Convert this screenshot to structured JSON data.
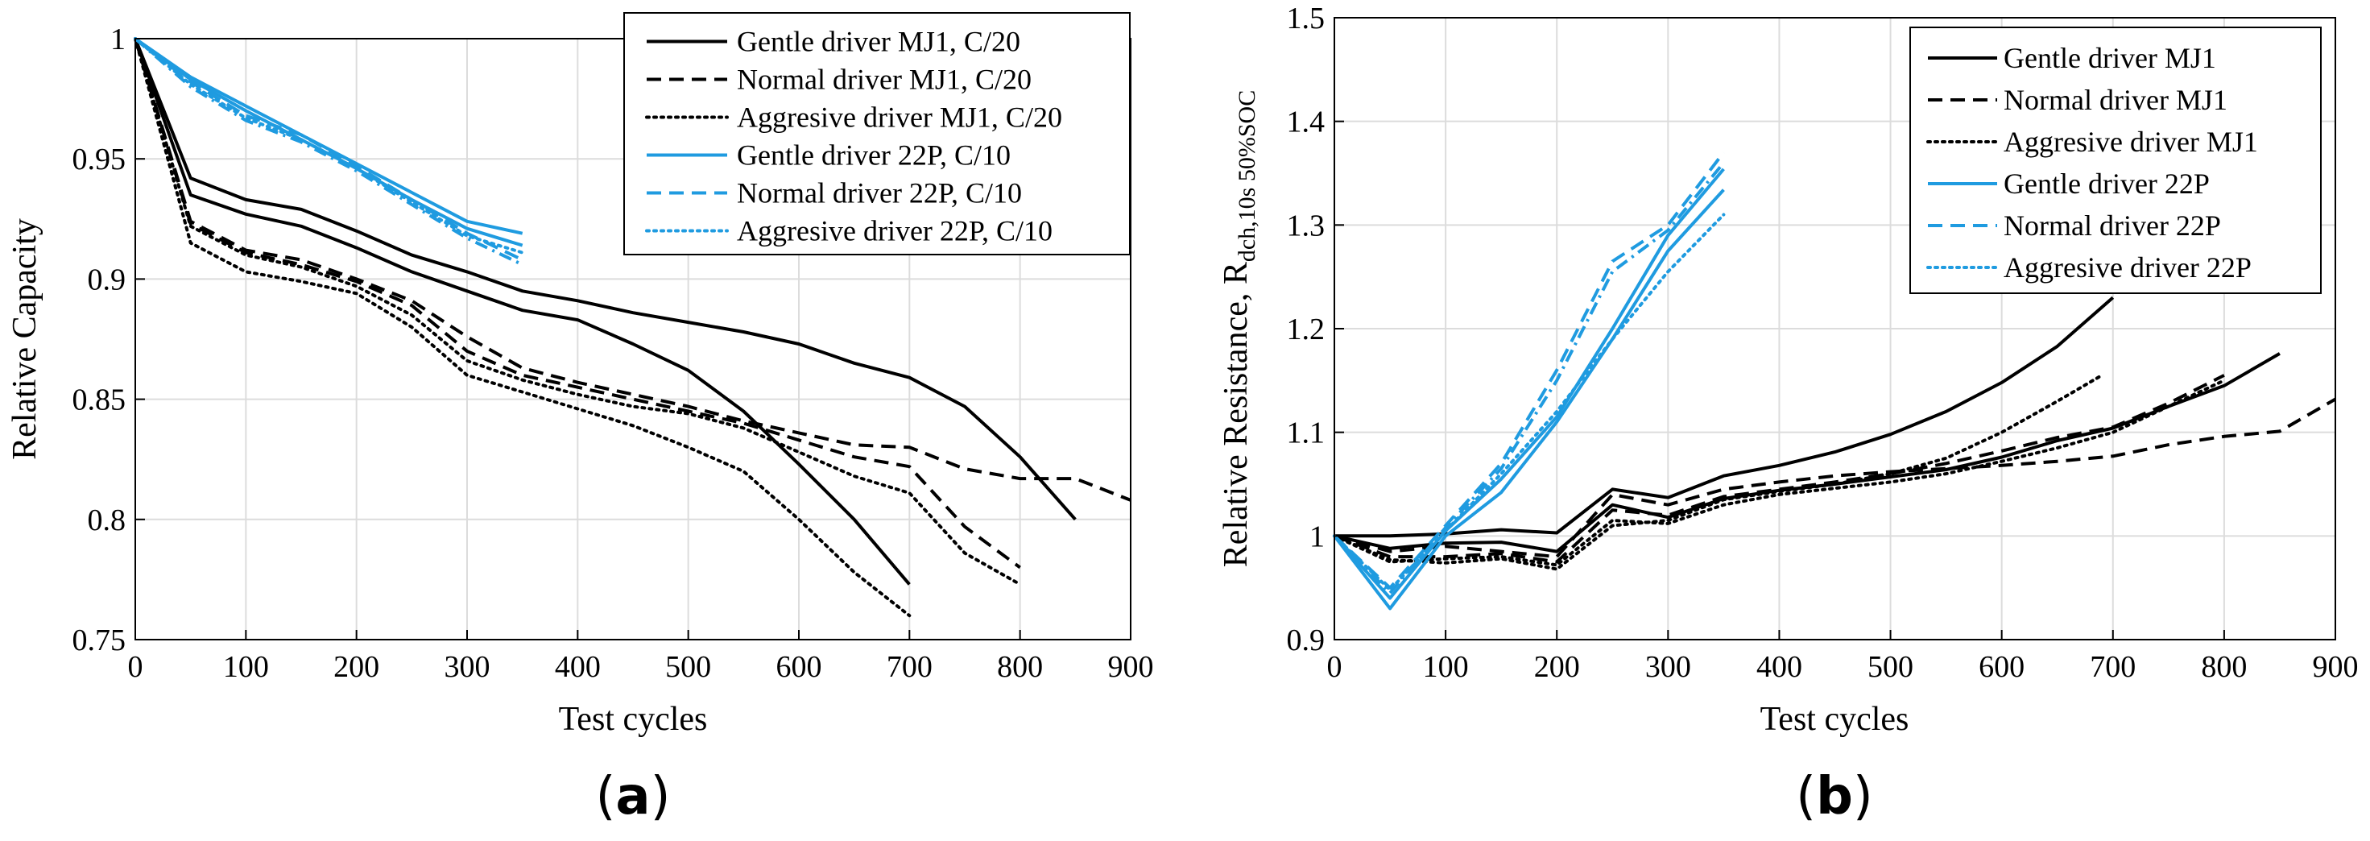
{
  "colors": {
    "mj1": "#000000",
    "p22": "#1f9be0",
    "grid": "#dcdcdc"
  },
  "chart_data": [
    {
      "type": "line",
      "panel_label_open": "(",
      "panel_label_letter": "a",
      "panel_label_close": ")",
      "xlabel": "Test cycles",
      "ylabel": "Relative Capacity",
      "xlim": [
        0,
        900
      ],
      "ylim": [
        0.75,
        1.0
      ],
      "xticks": [
        0,
        100,
        200,
        300,
        400,
        500,
        600,
        700,
        800,
        900
      ],
      "yticks": [
        0.75,
        0.8,
        0.85,
        0.9,
        0.95,
        1
      ],
      "ytick_labels": [
        "0.75",
        "0.8",
        "0.85",
        "0.9",
        "0.95",
        "1"
      ],
      "grid": true,
      "legend_position": "top-right",
      "series": [
        {
          "name": "Gentle driver MJ1, C/20",
          "color_key": "mj1",
          "style": "solid",
          "show_in_legend": true,
          "x": [
            0,
            50,
            100,
            150,
            200,
            250,
            300,
            350,
            400,
            450,
            500,
            550,
            600,
            650,
            700,
            750,
            800,
            850
          ],
          "y": [
            1.0,
            0.942,
            0.933,
            0.929,
            0.92,
            0.91,
            0.903,
            0.895,
            0.891,
            0.886,
            0.882,
            0.878,
            0.873,
            0.865,
            0.859,
            0.847,
            0.826,
            0.8
          ]
        },
        {
          "name": "",
          "color_key": "mj1",
          "style": "solid",
          "show_in_legend": false,
          "x": [
            0,
            50,
            100,
            150,
            200,
            250,
            300,
            350,
            400,
            450,
            500,
            550,
            600,
            650,
            700
          ],
          "y": [
            1.0,
            0.935,
            0.927,
            0.922,
            0.913,
            0.903,
            0.895,
            0.887,
            0.883,
            0.873,
            0.862,
            0.845,
            0.823,
            0.8,
            0.773
          ]
        },
        {
          "name": "Normal driver MJ1, C/20",
          "color_key": "mj1",
          "style": "dashed",
          "show_in_legend": true,
          "x": [
            0,
            50,
            100,
            150,
            200,
            250,
            300,
            350,
            400,
            450,
            500,
            550,
            600,
            650,
            700,
            750,
            800,
            850,
            900
          ],
          "y": [
            1.0,
            0.924,
            0.912,
            0.908,
            0.9,
            0.891,
            0.876,
            0.863,
            0.857,
            0.852,
            0.847,
            0.841,
            0.836,
            0.831,
            0.83,
            0.821,
            0.817,
            0.817,
            0.808
          ]
        },
        {
          "name": "",
          "color_key": "mj1",
          "style": "dashed",
          "show_in_legend": false,
          "x": [
            0,
            50,
            100,
            150,
            200,
            250,
            300,
            350,
            400,
            450,
            500,
            550,
            600,
            650,
            700,
            750,
            800
          ],
          "y": [
            1.0,
            0.923,
            0.911,
            0.906,
            0.899,
            0.889,
            0.87,
            0.86,
            0.855,
            0.85,
            0.845,
            0.84,
            0.833,
            0.826,
            0.822,
            0.797,
            0.78
          ]
        },
        {
          "name": "Aggresive driver MJ1, C/20",
          "color_key": "mj1",
          "style": "dotted",
          "show_in_legend": true,
          "x": [
            0,
            50,
            100,
            150,
            200,
            250,
            300,
            350,
            400,
            450,
            500,
            550,
            600,
            650,
            700
          ],
          "y": [
            1.0,
            0.915,
            0.903,
            0.899,
            0.894,
            0.88,
            0.86,
            0.853,
            0.846,
            0.839,
            0.83,
            0.82,
            0.8,
            0.778,
            0.76
          ]
        },
        {
          "name": "",
          "color_key": "mj1",
          "style": "dotted",
          "show_in_legend": false,
          "x": [
            0,
            50,
            100,
            150,
            200,
            250,
            300,
            350,
            400,
            450,
            500,
            550,
            600,
            650,
            700,
            750,
            800
          ],
          "y": [
            1.0,
            0.922,
            0.91,
            0.905,
            0.897,
            0.885,
            0.866,
            0.858,
            0.852,
            0.847,
            0.844,
            0.838,
            0.828,
            0.818,
            0.811,
            0.786,
            0.773
          ]
        },
        {
          "name": "Gentle driver 22P, C/10",
          "color_key": "p22",
          "style": "solid",
          "show_in_legend": true,
          "x": [
            0,
            50,
            100,
            150,
            200,
            250,
            300,
            350
          ],
          "y": [
            1.0,
            0.984,
            0.972,
            0.96,
            0.948,
            0.936,
            0.924,
            0.919
          ]
        },
        {
          "name": "",
          "color_key": "p22",
          "style": "solid",
          "show_in_legend": false,
          "x": [
            0,
            50,
            100,
            150,
            200,
            250,
            300,
            350
          ],
          "y": [
            1.0,
            0.983,
            0.97,
            0.958,
            0.946,
            0.933,
            0.921,
            0.914
          ]
        },
        {
          "name": "Normal driver 22P, C/10",
          "color_key": "p22",
          "style": "dashed",
          "show_in_legend": true,
          "x": [
            0,
            50,
            100,
            150,
            200,
            250,
            300,
            350
          ],
          "y": [
            1.0,
            0.982,
            0.968,
            0.96,
            0.947,
            0.933,
            0.919,
            0.908
          ]
        },
        {
          "name": "",
          "color_key": "p22",
          "style": "dashdot",
          "show_in_legend": false,
          "x": [
            0,
            50,
            100,
            150,
            200,
            250,
            300,
            350
          ],
          "y": [
            1.0,
            0.98,
            0.966,
            0.957,
            0.945,
            0.931,
            0.917,
            0.906
          ]
        },
        {
          "name": "Aggresive driver 22P, C/10",
          "color_key": "p22",
          "style": "dotted",
          "show_in_legend": true,
          "x": [
            0,
            50,
            100,
            150,
            200,
            250,
            300,
            350
          ],
          "y": [
            1.0,
            0.981,
            0.967,
            0.958,
            0.946,
            0.932,
            0.918,
            0.911
          ]
        }
      ]
    },
    {
      "type": "line",
      "panel_label_open": "(",
      "panel_label_letter": "b",
      "panel_label_close": ")",
      "xlabel": "Test cycles",
      "ylabel_main": "Relative Resistance, R",
      "ylabel_sub": "dch,10s 50%SOC",
      "xlim": [
        0,
        900
      ],
      "ylim": [
        0.9,
        1.5
      ],
      "xticks": [
        0,
        100,
        200,
        300,
        400,
        500,
        600,
        700,
        800,
        900
      ],
      "yticks": [
        0.9,
        1.0,
        1.1,
        1.2,
        1.3,
        1.4,
        1.5
      ],
      "ytick_labels": [
        "0.9",
        "1",
        "1.1",
        "1.2",
        "1.3",
        "1.4",
        "1.5"
      ],
      "grid": true,
      "legend_position": "top-right",
      "series": [
        {
          "name": "Gentle driver MJ1",
          "color_key": "mj1",
          "style": "solid",
          "show_in_legend": true,
          "x": [
            0,
            50,
            100,
            150,
            200,
            250,
            300,
            350,
            400,
            450,
            500,
            550,
            600,
            650,
            700
          ],
          "y": [
            1.0,
            1.0,
            1.002,
            1.006,
            1.003,
            1.045,
            1.037,
            1.058,
            1.068,
            1.081,
            1.098,
            1.12,
            1.148,
            1.183,
            1.23
          ]
        },
        {
          "name": "",
          "color_key": "mj1",
          "style": "solid",
          "show_in_legend": false,
          "x": [
            0,
            50,
            100,
            150,
            200,
            250,
            300,
            350,
            400,
            450,
            500,
            550,
            600,
            650,
            700,
            750,
            800,
            850
          ],
          "y": [
            1.0,
            0.988,
            0.993,
            0.994,
            0.985,
            1.03,
            1.018,
            1.036,
            1.044,
            1.05,
            1.057,
            1.064,
            1.076,
            1.092,
            1.104,
            1.125,
            1.145,
            1.176
          ]
        },
        {
          "name": "Normal driver MJ1",
          "color_key": "mj1",
          "style": "dashed",
          "show_in_legend": true,
          "x": [
            0,
            50,
            100,
            150,
            200,
            250,
            300,
            350,
            400,
            450,
            500,
            550,
            600,
            650,
            700,
            750,
            800,
            850,
            900
          ],
          "y": [
            1.0,
            0.985,
            0.99,
            0.985,
            0.98,
            1.04,
            1.03,
            1.045,
            1.052,
            1.058,
            1.062,
            1.065,
            1.068,
            1.072,
            1.077,
            1.088,
            1.096,
            1.101,
            1.132
          ]
        },
        {
          "name": "",
          "color_key": "mj1",
          "style": "dashed",
          "show_in_legend": false,
          "x": [
            0,
            50,
            100,
            150,
            200,
            250,
            300,
            350,
            400,
            450,
            500,
            550,
            600,
            650,
            700,
            750,
            800
          ],
          "y": [
            1.0,
            0.98,
            0.98,
            0.983,
            0.975,
            1.025,
            1.02,
            1.038,
            1.045,
            1.052,
            1.06,
            1.07,
            1.082,
            1.095,
            1.105,
            1.128,
            1.155
          ]
        },
        {
          "name": "Aggresive driver MJ1",
          "color_key": "mj1",
          "style": "dotted",
          "show_in_legend": true,
          "x": [
            0,
            50,
            100,
            150,
            200,
            250,
            300,
            350,
            400,
            450,
            500,
            550,
            600,
            650,
            690
          ],
          "y": [
            1.0,
            0.977,
            0.974,
            0.978,
            0.968,
            1.01,
            1.015,
            1.035,
            1.043,
            1.05,
            1.06,
            1.075,
            1.1,
            1.13,
            1.155
          ]
        },
        {
          "name": "",
          "color_key": "mj1",
          "style": "dotted",
          "show_in_legend": false,
          "x": [
            0,
            50,
            100,
            150,
            200,
            250,
            300,
            350,
            400,
            450,
            500,
            550,
            600,
            650,
            700,
            750,
            800
          ],
          "y": [
            1.0,
            0.975,
            0.978,
            0.98,
            0.972,
            1.015,
            1.012,
            1.03,
            1.04,
            1.046,
            1.052,
            1.06,
            1.072,
            1.085,
            1.1,
            1.125,
            1.15
          ]
        },
        {
          "name": "Gentle driver 22P",
          "color_key": "p22",
          "style": "solid",
          "show_in_legend": true,
          "x": [
            0,
            50,
            100,
            150,
            200,
            250,
            300,
            350
          ],
          "y": [
            1.0,
            0.93,
            1.0,
            1.042,
            1.11,
            1.19,
            1.275,
            1.334
          ]
        },
        {
          "name": "",
          "color_key": "p22",
          "style": "solid",
          "show_in_legend": false,
          "x": [
            0,
            50,
            100,
            150,
            200,
            250,
            300,
            350
          ],
          "y": [
            1.0,
            0.94,
            1.005,
            1.055,
            1.115,
            1.2,
            1.29,
            1.354
          ]
        },
        {
          "name": "Normal driver 22P",
          "color_key": "p22",
          "style": "dashed",
          "show_in_legend": true,
          "x": [
            0,
            50,
            100,
            150,
            200,
            250,
            300,
            350
          ],
          "y": [
            1.0,
            0.95,
            1.01,
            1.07,
            1.16,
            1.265,
            1.3,
            1.37
          ]
        },
        {
          "name": "",
          "color_key": "p22",
          "style": "dashdot",
          "show_in_legend": false,
          "x": [
            0,
            50,
            100,
            150,
            200,
            250,
            300,
            350
          ],
          "y": [
            1.0,
            0.945,
            1.008,
            1.065,
            1.15,
            1.255,
            1.295,
            1.36
          ]
        },
        {
          "name": "Aggresive driver 22P",
          "color_key": "p22",
          "style": "dotted",
          "show_in_legend": true,
          "x": [
            0,
            50,
            100,
            150,
            200,
            250,
            300,
            350
          ],
          "y": [
            1.0,
            0.948,
            1.005,
            1.06,
            1.12,
            1.19,
            1.255,
            1.31
          ]
        }
      ]
    }
  ]
}
